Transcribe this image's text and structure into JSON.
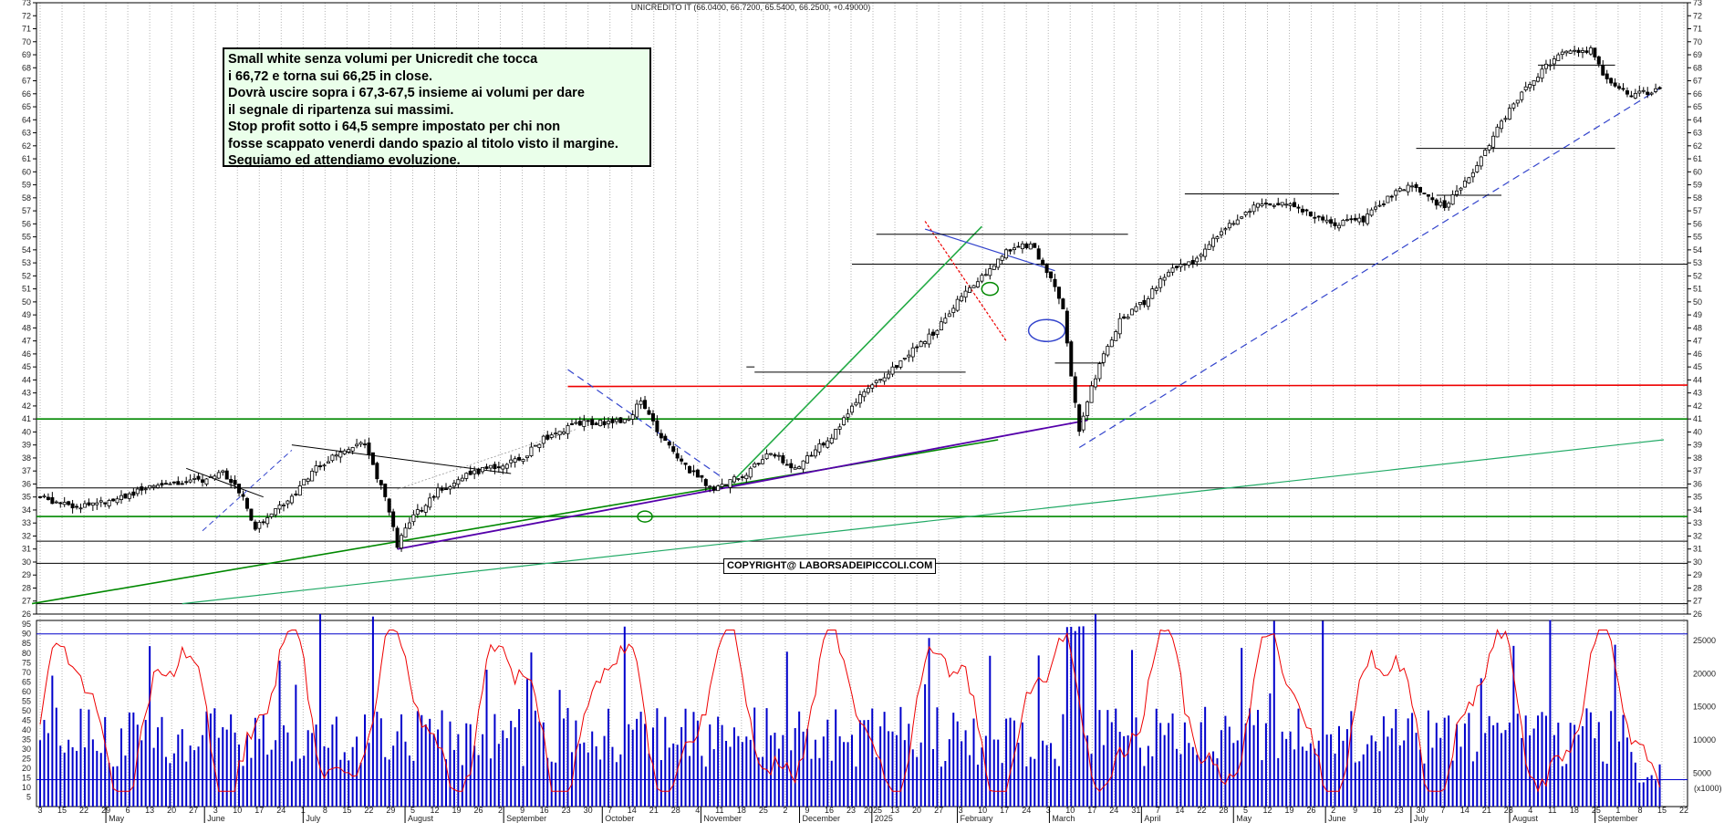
{
  "chart_data": {
    "type": "candlestick",
    "title": "UNICREDITO IT (66.0400, 66.7200, 65.5400, 66.2500, +0.49000)",
    "price_axis": {
      "ylim": [
        26,
        73
      ],
      "ticks": [
        26,
        27,
        28,
        29,
        30,
        31,
        32,
        33,
        34,
        35,
        36,
        37,
        38,
        39,
        40,
        41,
        42,
        43,
        44,
        45,
        46,
        47,
        48,
        49,
        50,
        51,
        52,
        53,
        54,
        55,
        56,
        57,
        58,
        59,
        60,
        61,
        62,
        63,
        64,
        65,
        66,
        67,
        68,
        69,
        70,
        71,
        72,
        73
      ]
    },
    "oscillator_axis": {
      "ylim": [
        0,
        97
      ],
      "ticks": [
        5,
        10,
        15,
        20,
        25,
        30,
        35,
        40,
        45,
        50,
        55,
        60,
        65,
        70,
        75,
        80,
        85,
        90,
        95
      ]
    },
    "volume_axis": {
      "ylim": [
        0,
        28000
      ],
      "ticks": [
        5000,
        10000,
        15000,
        20000,
        25000
      ],
      "unit_label": "(x1000)"
    },
    "date_ticks": [
      "3",
      "15",
      "22",
      "29",
      "6",
      "13",
      "20",
      "27",
      "3",
      "10",
      "17",
      "24",
      "1",
      "8",
      "15",
      "22",
      "29",
      "5",
      "12",
      "19",
      "26",
      "2",
      "9",
      "16",
      "23",
      "30",
      "7",
      "14",
      "21",
      "28",
      "4",
      "11",
      "18",
      "25",
      "2",
      "9",
      "16",
      "23",
      "2025",
      "13",
      "20",
      "27",
      "3",
      "10",
      "17",
      "24",
      "3",
      "10",
      "17",
      "24",
      "31",
      "7",
      "14",
      "22",
      "28",
      "5",
      "12",
      "19",
      "26",
      "2",
      "9",
      "16",
      "23",
      "30",
      "7",
      "14",
      "21",
      "28",
      "4",
      "11",
      "18",
      "25",
      "1",
      "8",
      "15",
      "22"
    ],
    "months": [
      "May",
      "June",
      "July",
      "August",
      "September",
      "October",
      "November",
      "December",
      "2025",
      "February",
      "March",
      "April",
      "May",
      "June",
      "July",
      "August",
      "September"
    ],
    "close_path": [
      [
        0,
        35.0
      ],
      [
        8,
        34.2
      ],
      [
        18,
        34.8
      ],
      [
        30,
        36.0
      ],
      [
        40,
        36.3
      ],
      [
        45,
        37.0
      ],
      [
        50,
        35.0
      ],
      [
        53,
        32.6
      ],
      [
        58,
        34.0
      ],
      [
        62,
        35.0
      ],
      [
        67,
        37.0
      ],
      [
        72,
        38.0
      ],
      [
        77,
        39.0
      ],
      [
        80,
        39.0
      ],
      [
        85,
        35.0
      ],
      [
        88,
        31.3
      ],
      [
        92,
        33.5
      ],
      [
        98,
        35.5
      ],
      [
        104,
        36.5
      ],
      [
        110,
        37.2
      ],
      [
        118,
        37.8
      ],
      [
        124,
        39.5
      ],
      [
        128,
        40.0
      ],
      [
        133,
        40.7
      ],
      [
        138,
        40.7
      ],
      [
        145,
        41.0
      ],
      [
        148,
        42.5
      ],
      [
        152,
        40.0
      ],
      [
        156,
        38.6
      ],
      [
        160,
        37.0
      ],
      [
        166,
        35.6
      ],
      [
        174,
        36.8
      ],
      [
        180,
        38.4
      ],
      [
        186,
        37.2
      ],
      [
        190,
        38.3
      ],
      [
        196,
        40.0
      ],
      [
        202,
        42.7
      ],
      [
        208,
        44.3
      ],
      [
        214,
        46.0
      ],
      [
        220,
        47.6
      ],
      [
        226,
        50.0
      ],
      [
        232,
        52.0
      ],
      [
        238,
        53.8
      ],
      [
        244,
        54.5
      ],
      [
        248,
        52.4
      ],
      [
        252,
        49.5
      ],
      [
        254,
        44.5
      ],
      [
        256,
        40.0
      ],
      [
        258,
        42.5
      ],
      [
        262,
        46.0
      ],
      [
        266,
        48.5
      ],
      [
        272,
        50.0
      ],
      [
        278,
        52.5
      ],
      [
        284,
        53.0
      ],
      [
        292,
        55.8
      ],
      [
        300,
        57.5
      ],
      [
        308,
        57.5
      ],
      [
        318,
        56.0
      ],
      [
        326,
        56.3
      ],
      [
        332,
        58.0
      ],
      [
        338,
        59.0
      ],
      [
        342,
        58.0
      ],
      [
        346,
        57.3
      ],
      [
        352,
        59.6
      ],
      [
        360,
        63.8
      ],
      [
        366,
        66.5
      ],
      [
        374,
        69.0
      ],
      [
        382,
        69.4
      ],
      [
        386,
        67.0
      ],
      [
        392,
        66.0
      ],
      [
        398,
        66.25
      ]
    ],
    "annotation": [
      "Small white senza volumi per Unicredit che tocca",
      "i 66,72 e torna sui 66,25 in close.",
      "Dovrà uscire sopra i 67,3-67,5 insieme ai volumi per dare",
      "il segnale di ripartenza sui massimi.",
      "Stop profit sotto i 64,5 sempre impostato per chi non",
      "fosse scappato venerdi dando spazio al titolo visto il margine.",
      "Seguiamo ed attendiamo evoluzione."
    ],
    "copyright": "COPYRIGHT@ LABORSADEIPICCOLI.COM",
    "horizontal_levels": [
      29.9,
      31.6,
      33.5,
      35.7,
      41.0,
      52.9,
      61.8,
      68.2
    ],
    "resistance_red": 43.5,
    "colors": {
      "up_candle": "#ffffff",
      "down_candle": "#000000",
      "volume": "#0000cc",
      "oscillator": "#ee0000",
      "support_green": "#008800",
      "resistance_red": "#ee0000",
      "trend_blue": "#3333cc",
      "trend_purple": "#5500aa"
    }
  }
}
